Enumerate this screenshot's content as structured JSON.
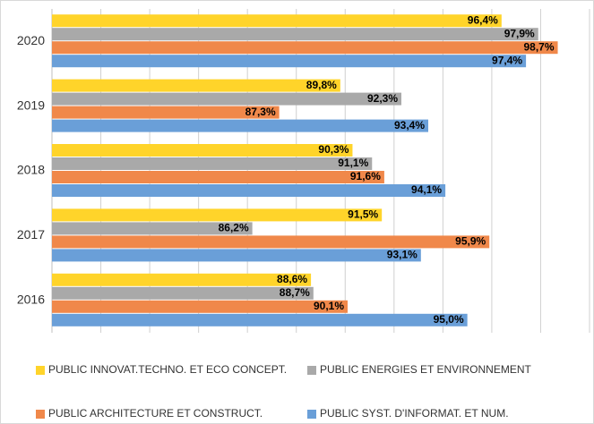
{
  "chart_data": {
    "type": "bar",
    "orientation": "horizontal",
    "categories": [
      "2020",
      "2019",
      "2018",
      "2017",
      "2016"
    ],
    "series": [
      {
        "name": "PUBLIC INNOVAT.TECHNO.  ET ECO CONCEPT.",
        "color": "#ffd42a",
        "values": [
          96.4,
          89.8,
          90.3,
          91.5,
          88.6
        ],
        "value_labels": [
          "96,4%",
          "89,8%",
          "90,3%",
          "91,5%",
          "88,6%"
        ]
      },
      {
        "name": "PUBLIC ENERGIES  ET ENVIRONNEMENT",
        "color": "#a9a9a9",
        "values": [
          97.9,
          92.3,
          91.1,
          86.2,
          88.7
        ],
        "value_labels": [
          "97,9%",
          "92,3%",
          "91,1%",
          "86,2%",
          "88,7%"
        ]
      },
      {
        "name": "PUBLIC ARCHITECTURE ET CONSTRUCT.",
        "color": "#f0884a",
        "values": [
          98.7,
          87.3,
          91.6,
          95.9,
          90.1
        ],
        "value_labels": [
          "98,7%",
          "87,3%",
          "91,6%",
          "95,9%",
          "90,1%"
        ]
      },
      {
        "name": "PUBLIC SYST. D'INFORMAT. ET NUM.",
        "color": "#6a9fd8",
        "values": [
          97.4,
          93.4,
          94.1,
          93.1,
          95.0
        ],
        "value_labels": [
          "97,4%",
          "93,4%",
          "94,1%",
          "93,1%",
          "95,0%"
        ]
      }
    ],
    "xlim": [
      78,
      100
    ],
    "xticks": [
      78,
      80,
      82,
      84,
      86,
      88,
      90,
      92,
      94,
      96,
      98,
      100
    ],
    "grid": true,
    "legend": "bottom"
  }
}
